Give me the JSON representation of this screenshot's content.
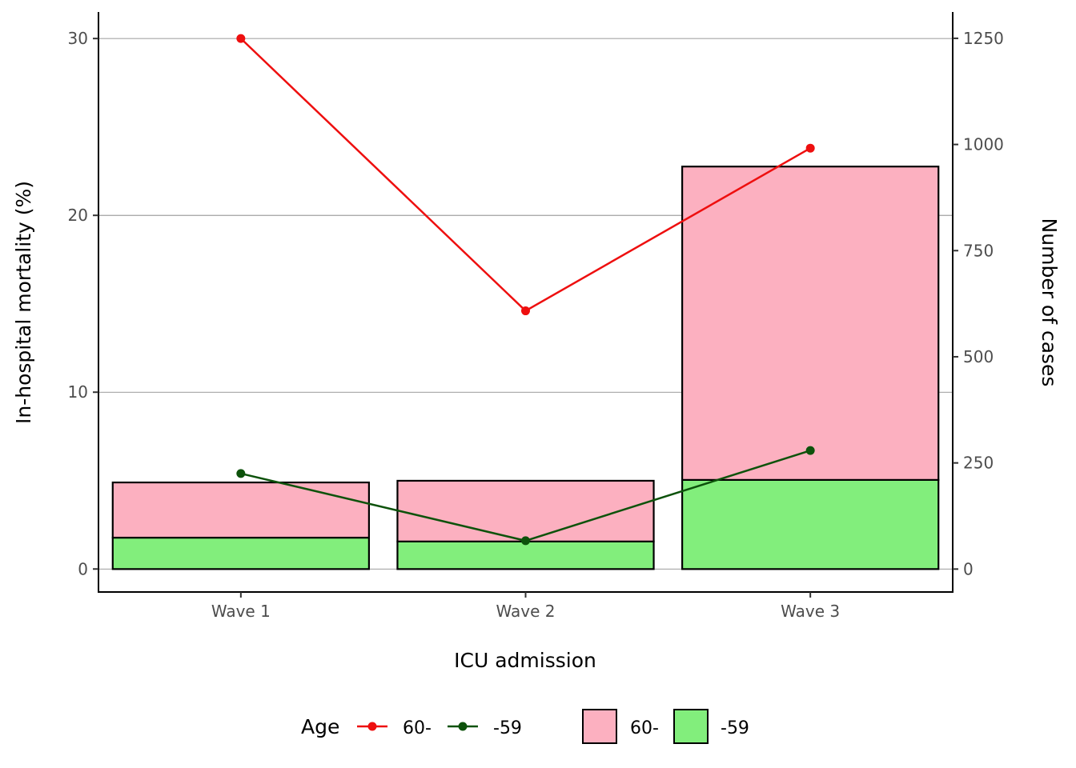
{
  "chart_data": {
    "type": "bar",
    "categories": [
      "Wave 1",
      "Wave 2",
      "Wave 3"
    ],
    "xlabel": "ICU admission",
    "ylabel_left": "In-hospital mortality (%)",
    "ylabel_right": "Number of cases",
    "ylim_left": [
      -1.3,
      31.5
    ],
    "ylim_right": [
      -54,
      1312
    ],
    "y_ticks_left": [
      "0",
      "10",
      "20",
      "30"
    ],
    "y_ticks_right": [
      "0",
      "250",
      "500",
      "750",
      "1000",
      "1250"
    ],
    "grid": "horizontal",
    "bar_series": [
      {
        "name": "-59",
        "color": "#82ee7c",
        "values": [
          74,
          65,
          210
        ]
      },
      {
        "name": "60-",
        "color": "#fcb0c0",
        "values": [
          130,
          143,
          738
        ]
      }
    ],
    "line_series": [
      {
        "name": "60-",
        "color": "#ee0f0f",
        "values": [
          30.0,
          14.6,
          23.8
        ]
      },
      {
        "name": "-59",
        "color": "#0d520b",
        "values": [
          5.4,
          1.6,
          6.7
        ]
      }
    ],
    "legend": {
      "title": "Age",
      "position": "bottom",
      "line_entries": [
        {
          "label": "60-",
          "color": "#ee0f0f"
        },
        {
          "label": "-59",
          "color": "#0d520b"
        }
      ],
      "fill_entries": [
        {
          "label": "60-",
          "color": "#fcb0c0"
        },
        {
          "label": "-59",
          "color": "#82ee7c"
        }
      ]
    }
  }
}
